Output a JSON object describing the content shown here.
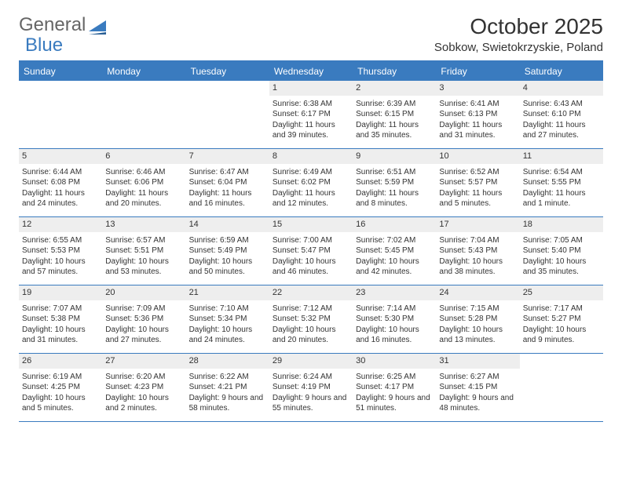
{
  "brand": {
    "general": "General",
    "blue": "Blue"
  },
  "title": "October 2025",
  "location": "Sobkow, Swietokrzyskie, Poland",
  "colors": {
    "header_bg": "#3a7bbf",
    "header_text": "#ffffff",
    "daynum_bg": "#eeeeee",
    "text": "#333333",
    "rule": "#3a7bbf"
  },
  "day_headers": [
    "Sunday",
    "Monday",
    "Tuesday",
    "Wednesday",
    "Thursday",
    "Friday",
    "Saturday"
  ],
  "weeks": [
    [
      {
        "empty": true
      },
      {
        "empty": true
      },
      {
        "empty": true
      },
      {
        "num": "1",
        "sunrise": "Sunrise: 6:38 AM",
        "sunset": "Sunset: 6:17 PM",
        "daylight": "Daylight: 11 hours and 39 minutes."
      },
      {
        "num": "2",
        "sunrise": "Sunrise: 6:39 AM",
        "sunset": "Sunset: 6:15 PM",
        "daylight": "Daylight: 11 hours and 35 minutes."
      },
      {
        "num": "3",
        "sunrise": "Sunrise: 6:41 AM",
        "sunset": "Sunset: 6:13 PM",
        "daylight": "Daylight: 11 hours and 31 minutes."
      },
      {
        "num": "4",
        "sunrise": "Sunrise: 6:43 AM",
        "sunset": "Sunset: 6:10 PM",
        "daylight": "Daylight: 11 hours and 27 minutes."
      }
    ],
    [
      {
        "num": "5",
        "sunrise": "Sunrise: 6:44 AM",
        "sunset": "Sunset: 6:08 PM",
        "daylight": "Daylight: 11 hours and 24 minutes."
      },
      {
        "num": "6",
        "sunrise": "Sunrise: 6:46 AM",
        "sunset": "Sunset: 6:06 PM",
        "daylight": "Daylight: 11 hours and 20 minutes."
      },
      {
        "num": "7",
        "sunrise": "Sunrise: 6:47 AM",
        "sunset": "Sunset: 6:04 PM",
        "daylight": "Daylight: 11 hours and 16 minutes."
      },
      {
        "num": "8",
        "sunrise": "Sunrise: 6:49 AM",
        "sunset": "Sunset: 6:02 PM",
        "daylight": "Daylight: 11 hours and 12 minutes."
      },
      {
        "num": "9",
        "sunrise": "Sunrise: 6:51 AM",
        "sunset": "Sunset: 5:59 PM",
        "daylight": "Daylight: 11 hours and 8 minutes."
      },
      {
        "num": "10",
        "sunrise": "Sunrise: 6:52 AM",
        "sunset": "Sunset: 5:57 PM",
        "daylight": "Daylight: 11 hours and 5 minutes."
      },
      {
        "num": "11",
        "sunrise": "Sunrise: 6:54 AM",
        "sunset": "Sunset: 5:55 PM",
        "daylight": "Daylight: 11 hours and 1 minute."
      }
    ],
    [
      {
        "num": "12",
        "sunrise": "Sunrise: 6:55 AM",
        "sunset": "Sunset: 5:53 PM",
        "daylight": "Daylight: 10 hours and 57 minutes."
      },
      {
        "num": "13",
        "sunrise": "Sunrise: 6:57 AM",
        "sunset": "Sunset: 5:51 PM",
        "daylight": "Daylight: 10 hours and 53 minutes."
      },
      {
        "num": "14",
        "sunrise": "Sunrise: 6:59 AM",
        "sunset": "Sunset: 5:49 PM",
        "daylight": "Daylight: 10 hours and 50 minutes."
      },
      {
        "num": "15",
        "sunrise": "Sunrise: 7:00 AM",
        "sunset": "Sunset: 5:47 PM",
        "daylight": "Daylight: 10 hours and 46 minutes."
      },
      {
        "num": "16",
        "sunrise": "Sunrise: 7:02 AM",
        "sunset": "Sunset: 5:45 PM",
        "daylight": "Daylight: 10 hours and 42 minutes."
      },
      {
        "num": "17",
        "sunrise": "Sunrise: 7:04 AM",
        "sunset": "Sunset: 5:43 PM",
        "daylight": "Daylight: 10 hours and 38 minutes."
      },
      {
        "num": "18",
        "sunrise": "Sunrise: 7:05 AM",
        "sunset": "Sunset: 5:40 PM",
        "daylight": "Daylight: 10 hours and 35 minutes."
      }
    ],
    [
      {
        "num": "19",
        "sunrise": "Sunrise: 7:07 AM",
        "sunset": "Sunset: 5:38 PM",
        "daylight": "Daylight: 10 hours and 31 minutes."
      },
      {
        "num": "20",
        "sunrise": "Sunrise: 7:09 AM",
        "sunset": "Sunset: 5:36 PM",
        "daylight": "Daylight: 10 hours and 27 minutes."
      },
      {
        "num": "21",
        "sunrise": "Sunrise: 7:10 AM",
        "sunset": "Sunset: 5:34 PM",
        "daylight": "Daylight: 10 hours and 24 minutes."
      },
      {
        "num": "22",
        "sunrise": "Sunrise: 7:12 AM",
        "sunset": "Sunset: 5:32 PM",
        "daylight": "Daylight: 10 hours and 20 minutes."
      },
      {
        "num": "23",
        "sunrise": "Sunrise: 7:14 AM",
        "sunset": "Sunset: 5:30 PM",
        "daylight": "Daylight: 10 hours and 16 minutes."
      },
      {
        "num": "24",
        "sunrise": "Sunrise: 7:15 AM",
        "sunset": "Sunset: 5:28 PM",
        "daylight": "Daylight: 10 hours and 13 minutes."
      },
      {
        "num": "25",
        "sunrise": "Sunrise: 7:17 AM",
        "sunset": "Sunset: 5:27 PM",
        "daylight": "Daylight: 10 hours and 9 minutes."
      }
    ],
    [
      {
        "num": "26",
        "sunrise": "Sunrise: 6:19 AM",
        "sunset": "Sunset: 4:25 PM",
        "daylight": "Daylight: 10 hours and 5 minutes."
      },
      {
        "num": "27",
        "sunrise": "Sunrise: 6:20 AM",
        "sunset": "Sunset: 4:23 PM",
        "daylight": "Daylight: 10 hours and 2 minutes."
      },
      {
        "num": "28",
        "sunrise": "Sunrise: 6:22 AM",
        "sunset": "Sunset: 4:21 PM",
        "daylight": "Daylight: 9 hours and 58 minutes."
      },
      {
        "num": "29",
        "sunrise": "Sunrise: 6:24 AM",
        "sunset": "Sunset: 4:19 PM",
        "daylight": "Daylight: 9 hours and 55 minutes."
      },
      {
        "num": "30",
        "sunrise": "Sunrise: 6:25 AM",
        "sunset": "Sunset: 4:17 PM",
        "daylight": "Daylight: 9 hours and 51 minutes."
      },
      {
        "num": "31",
        "sunrise": "Sunrise: 6:27 AM",
        "sunset": "Sunset: 4:15 PM",
        "daylight": "Daylight: 9 hours and 48 minutes."
      },
      {
        "empty": true
      }
    ]
  ]
}
